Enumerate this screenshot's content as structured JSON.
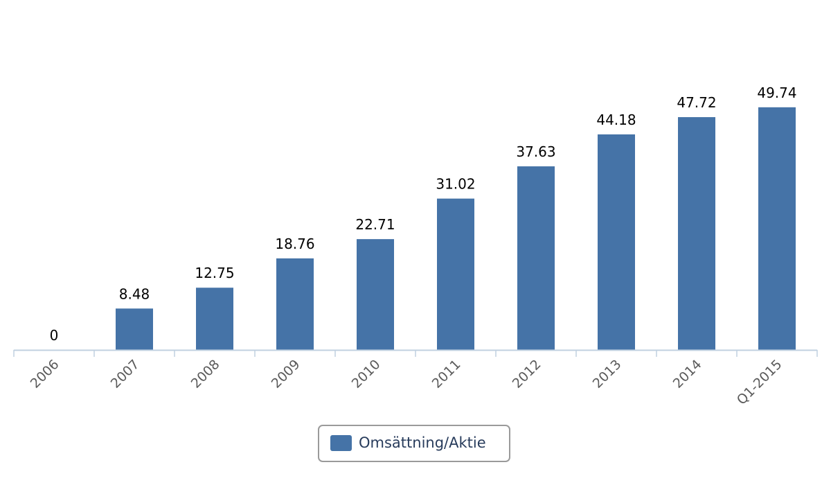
{
  "chart_data": {
    "type": "bar",
    "categories": [
      "2006",
      "2007",
      "2008",
      "2009",
      "2010",
      "2011",
      "2012",
      "2013",
      "2014",
      "Q1-2015"
    ],
    "series": [
      {
        "name": "Omsättning/Aktie",
        "values": [
          0,
          8.48,
          12.75,
          18.76,
          22.71,
          31.02,
          37.63,
          44.18,
          47.72,
          49.74
        ],
        "color": "#4573a7"
      }
    ],
    "data_labels": [
      "0",
      "8.48",
      "12.75",
      "18.76",
      "22.71",
      "31.02",
      "37.63",
      "44.18",
      "47.72",
      "49.74"
    ],
    "title": "",
    "xlabel": "",
    "ylabel": "",
    "ylim": [
      0,
      60
    ],
    "grid": false,
    "legend_position": "bottom-center"
  },
  "colors": {
    "bar": "#4573a7",
    "axis": "#c0d0e0",
    "tick_text": "#5a5a5a",
    "legend_border": "#9a9a9a",
    "legend_text": "#283c5c"
  }
}
